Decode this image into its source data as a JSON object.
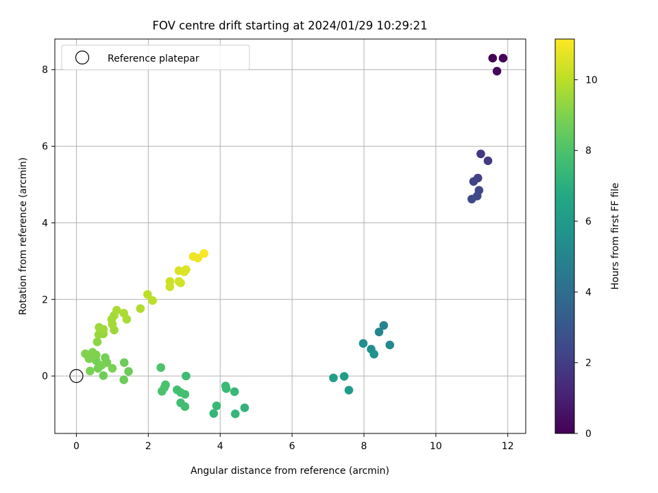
{
  "chart_data": {
    "type": "scatter",
    "title": "FOV centre drift starting at 2024/01/29 10:29:21",
    "xlabel": "Angular distance from reference (arcmin)",
    "ylabel": "Rotation from reference (arcmin)",
    "xlim": [
      -0.6,
      12.5
    ],
    "ylim": [
      -1.5,
      8.8
    ],
    "xticks": [
      0,
      2,
      4,
      6,
      8,
      10,
      12
    ],
    "yticks": [
      0,
      2,
      4,
      6,
      8
    ],
    "grid": true,
    "legend": {
      "position": "upper-left",
      "entries": [
        "Reference platepar"
      ]
    },
    "reference_point": {
      "x": 0,
      "y": 0,
      "label": "Reference platepar"
    },
    "colorbar": {
      "label": "Hours from first FF file",
      "colormap": "viridis",
      "range": [
        0,
        11.15
      ],
      "ticks": [
        0,
        2,
        4,
        6,
        8,
        10
      ]
    },
    "points": [
      {
        "x": 11.58,
        "y": 8.3,
        "h": 0.0
      },
      {
        "x": 11.87,
        "y": 8.3,
        "h": 0.1
      },
      {
        "x": 11.7,
        "y": 7.96,
        "h": 0.2
      },
      {
        "x": 11.25,
        "y": 5.8,
        "h": 1.8
      },
      {
        "x": 11.45,
        "y": 5.62,
        "h": 1.9
      },
      {
        "x": 11.17,
        "y": 5.17,
        "h": 2.1
      },
      {
        "x": 11.05,
        "y": 5.08,
        "h": 2.2
      },
      {
        "x": 11.2,
        "y": 4.85,
        "h": 2.3
      },
      {
        "x": 11.15,
        "y": 4.7,
        "h": 2.4
      },
      {
        "x": 11.0,
        "y": 4.62,
        "h": 2.5
      },
      {
        "x": 8.55,
        "y": 1.32,
        "h": 5.0
      },
      {
        "x": 8.42,
        "y": 1.15,
        "h": 5.1
      },
      {
        "x": 8.72,
        "y": 0.81,
        "h": 5.2
      },
      {
        "x": 7.98,
        "y": 0.85,
        "h": 5.4
      },
      {
        "x": 8.2,
        "y": 0.7,
        "h": 5.5
      },
      {
        "x": 8.28,
        "y": 0.57,
        "h": 5.6
      },
      {
        "x": 7.58,
        "y": -0.37,
        "h": 6.0
      },
      {
        "x": 7.45,
        "y": -0.01,
        "h": 6.1
      },
      {
        "x": 7.15,
        "y": -0.05,
        "h": 6.2
      },
      {
        "x": 4.68,
        "y": -0.83,
        "h": 7.2
      },
      {
        "x": 4.42,
        "y": -0.99,
        "h": 7.3
      },
      {
        "x": 3.82,
        "y": -0.98,
        "h": 7.3
      },
      {
        "x": 3.9,
        "y": -0.78,
        "h": 7.4
      },
      {
        "x": 4.4,
        "y": -0.41,
        "h": 7.4
      },
      {
        "x": 4.15,
        "y": -0.26,
        "h": 7.5
      },
      {
        "x": 4.17,
        "y": -0.33,
        "h": 7.5
      },
      {
        "x": 3.05,
        "y": 0.0,
        "h": 7.6
      },
      {
        "x": 3.02,
        "y": -0.8,
        "h": 7.7
      },
      {
        "x": 2.9,
        "y": -0.7,
        "h": 7.7
      },
      {
        "x": 3.02,
        "y": -0.48,
        "h": 7.8
      },
      {
        "x": 2.9,
        "y": -0.43,
        "h": 7.8
      },
      {
        "x": 2.8,
        "y": -0.36,
        "h": 7.8
      },
      {
        "x": 2.48,
        "y": -0.23,
        "h": 7.9
      },
      {
        "x": 2.45,
        "y": -0.3,
        "h": 7.9
      },
      {
        "x": 2.38,
        "y": -0.4,
        "h": 7.9
      },
      {
        "x": 2.35,
        "y": 0.22,
        "h": 8.0
      },
      {
        "x": 1.33,
        "y": 0.35,
        "h": 8.6
      },
      {
        "x": 1.32,
        "y": -0.1,
        "h": 8.6
      },
      {
        "x": 1.45,
        "y": 0.12,
        "h": 8.6
      },
      {
        "x": 0.75,
        "y": 0.01,
        "h": 8.7
      },
      {
        "x": 0.6,
        "y": 0.2,
        "h": 8.8
      },
      {
        "x": 0.85,
        "y": 0.35,
        "h": 8.8
      },
      {
        "x": 0.8,
        "y": 0.48,
        "h": 8.8
      },
      {
        "x": 0.55,
        "y": 0.4,
        "h": 8.8
      },
      {
        "x": 0.7,
        "y": 0.28,
        "h": 8.9
      },
      {
        "x": 1.0,
        "y": 0.2,
        "h": 8.9
      },
      {
        "x": 0.38,
        "y": 0.13,
        "h": 8.9
      },
      {
        "x": 0.35,
        "y": 0.45,
        "h": 9.0
      },
      {
        "x": 0.25,
        "y": 0.58,
        "h": 9.0
      },
      {
        "x": 0.45,
        "y": 0.62,
        "h": 9.0
      },
      {
        "x": 0.55,
        "y": 0.55,
        "h": 9.0
      },
      {
        "x": 0.58,
        "y": 0.89,
        "h": 9.2
      },
      {
        "x": 0.62,
        "y": 1.08,
        "h": 9.4
      },
      {
        "x": 0.75,
        "y": 1.1,
        "h": 9.4
      },
      {
        "x": 0.63,
        "y": 1.27,
        "h": 9.5
      },
      {
        "x": 0.75,
        "y": 1.22,
        "h": 9.5
      },
      {
        "x": 1.05,
        "y": 1.2,
        "h": 9.5
      },
      {
        "x": 1.0,
        "y": 1.35,
        "h": 9.6
      },
      {
        "x": 0.98,
        "y": 1.48,
        "h": 9.6
      },
      {
        "x": 1.05,
        "y": 1.58,
        "h": 9.6
      },
      {
        "x": 1.12,
        "y": 1.72,
        "h": 9.7
      },
      {
        "x": 1.32,
        "y": 1.64,
        "h": 9.7
      },
      {
        "x": 1.4,
        "y": 1.48,
        "h": 9.7
      },
      {
        "x": 1.78,
        "y": 1.76,
        "h": 9.8
      },
      {
        "x": 1.98,
        "y": 2.13,
        "h": 10.0
      },
      {
        "x": 2.12,
        "y": 1.97,
        "h": 10.0
      },
      {
        "x": 2.6,
        "y": 2.33,
        "h": 10.3
      },
      {
        "x": 2.6,
        "y": 2.47,
        "h": 10.3
      },
      {
        "x": 2.85,
        "y": 2.47,
        "h": 10.4
      },
      {
        "x": 2.9,
        "y": 2.43,
        "h": 10.4
      },
      {
        "x": 2.85,
        "y": 2.75,
        "h": 10.5
      },
      {
        "x": 3.0,
        "y": 2.72,
        "h": 10.6
      },
      {
        "x": 3.05,
        "y": 2.78,
        "h": 10.6
      },
      {
        "x": 3.25,
        "y": 3.12,
        "h": 10.9
      },
      {
        "x": 3.38,
        "y": 3.08,
        "h": 10.9
      },
      {
        "x": 3.55,
        "y": 3.2,
        "h": 11.1
      }
    ]
  }
}
